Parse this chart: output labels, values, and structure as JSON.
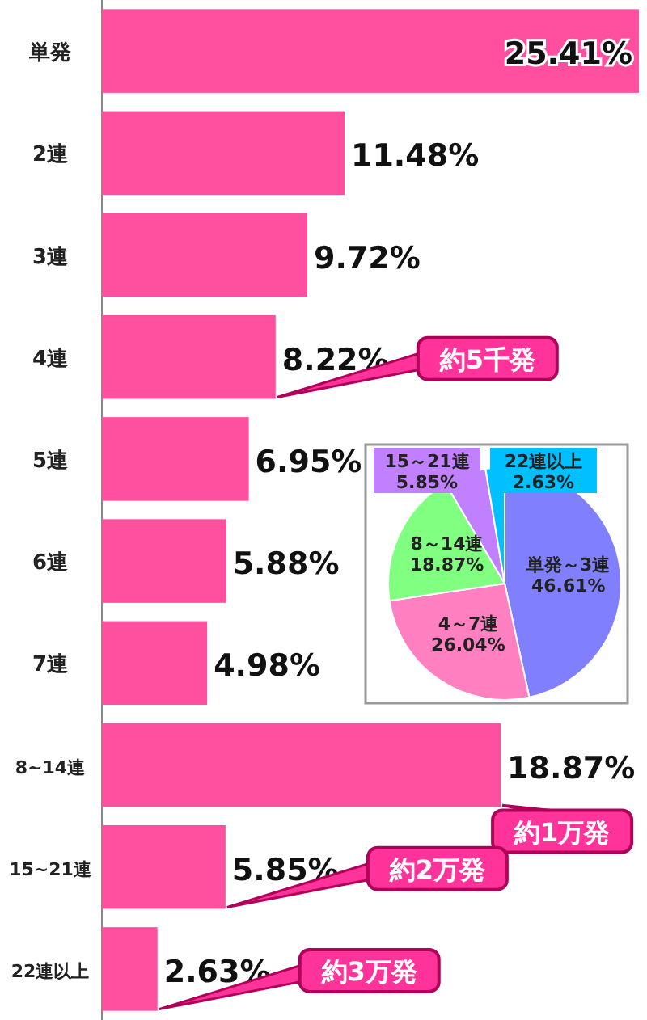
{
  "chart_data": [
    {
      "type": "bar",
      "orientation": "horizontal",
      "categories": [
        "単発",
        "2連",
        "3連",
        "4連",
        "5連",
        "6連",
        "7連",
        "8~14連",
        "15~21連",
        "22連以上"
      ],
      "values": [
        25.41,
        11.48,
        9.72,
        8.22,
        6.95,
        5.88,
        4.98,
        18.87,
        5.85,
        2.63
      ],
      "value_labels": [
        "25.41%",
        "11.48%",
        "9.72%",
        "8.22%",
        "6.95%",
        "5.88%",
        "4.98%",
        "18.87%",
        "5.85%",
        "2.63%"
      ],
      "color": "#ff4f9e",
      "xlim": [
        0,
        25.41
      ],
      "annotations": [
        {
          "text": "約5千発",
          "x": 8.22,
          "y": "4連"
        },
        {
          "text": "約1万発",
          "x": 18.87,
          "y": "8~14連"
        },
        {
          "text": "約2万発",
          "x": 5.85,
          "y": "15~21連"
        },
        {
          "text": "約3万発",
          "x": 2.63,
          "y": "22連以上"
        }
      ]
    },
    {
      "type": "pie",
      "categories": [
        "単発～3連",
        "4～7連",
        "8～14連",
        "15～21連",
        "22連以上"
      ],
      "values": [
        46.61,
        26.04,
        18.87,
        5.85,
        2.63
      ],
      "value_labels": [
        "46.61%",
        "26.04%",
        "18.87%",
        "5.85%",
        "2.63%"
      ],
      "colors": [
        "#8080ff",
        "#ff80c0",
        "#80ff80",
        "#c080ff",
        "#00c0ff"
      ]
    }
  ]
}
